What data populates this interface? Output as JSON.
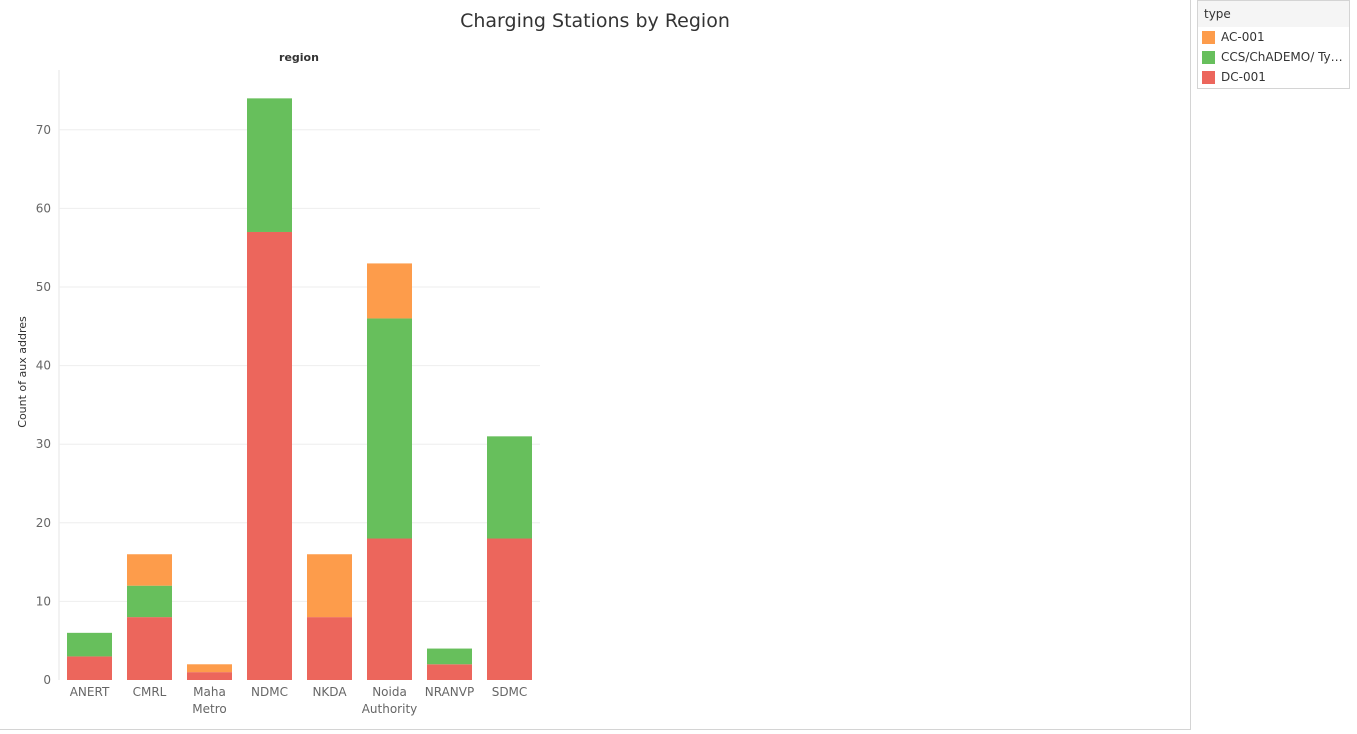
{
  "chart_data": {
    "type": "bar",
    "stacked": true,
    "title": "Charging Stations by Region",
    "column_header": "region",
    "ylabel": "Count of aux addres",
    "ylim": [
      0,
      77
    ],
    "yticks": [
      0,
      10,
      20,
      30,
      40,
      50,
      60,
      70
    ],
    "grid": true,
    "categories": [
      [
        "ANERT"
      ],
      [
        "CMRL"
      ],
      [
        "Maha",
        "Metro"
      ],
      [
        "NDMC"
      ],
      [
        "NKDA"
      ],
      [
        "Noida",
        "Authority"
      ],
      [
        "NRANVP"
      ],
      [
        "SDMC"
      ]
    ],
    "series": [
      {
        "name": "DC-001",
        "color": "#ec665c",
        "values": [
          3,
          8,
          1,
          57,
          8,
          18,
          2,
          18
        ]
      },
      {
        "name": "CCS/ChADEMO/ Type..",
        "color": "#67bf5c",
        "values": [
          3,
          4,
          0,
          17,
          0,
          28,
          2,
          13
        ]
      },
      {
        "name": "AC-001",
        "color": "#fd9c4b",
        "values": [
          0,
          4,
          1,
          0,
          8,
          7,
          0,
          0
        ]
      }
    ],
    "legend": {
      "title": "type",
      "position": "top-right",
      "items": [
        {
          "label": "AC-001",
          "color": "#fd9c4b"
        },
        {
          "label": "CCS/ChADEMO/ Type..",
          "color": "#67bf5c"
        },
        {
          "label": "DC-001",
          "color": "#ec665c"
        }
      ]
    }
  }
}
